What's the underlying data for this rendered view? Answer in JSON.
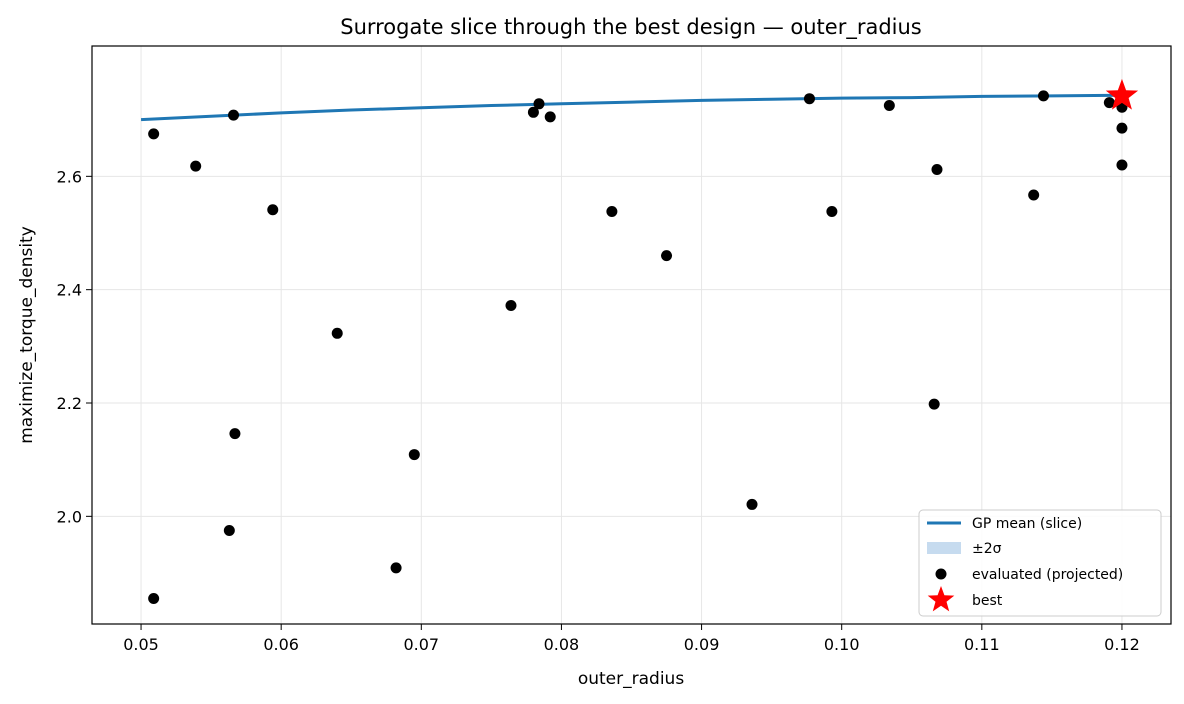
{
  "chart_data": {
    "type": "scatter",
    "title": "Surrogate slice through the best design — outer_radius",
    "xlabel": "outer_radius",
    "ylabel": "maximize_torque_density",
    "xlim": [
      0.0465,
      0.1235
    ],
    "ylim": [
      1.81,
      2.83
    ],
    "xticks": [
      0.05,
      0.06,
      0.07,
      0.08,
      0.09,
      0.1,
      0.11,
      0.12
    ],
    "xtick_labels": [
      "0.05",
      "0.06",
      "0.07",
      "0.08",
      "0.09",
      "0.10",
      "0.11",
      "0.12"
    ],
    "yticks": [
      2.0,
      2.2,
      2.4,
      2.6
    ],
    "ytick_labels": [
      "2.0",
      "2.2",
      "2.4",
      "2.6"
    ],
    "grid": true,
    "legend_position": "bottom-right",
    "colors": {
      "mean": "#1f77b4",
      "band": "#c6dbef",
      "points": "#000000",
      "best": "#ff0000"
    },
    "series": [
      {
        "name": "GP mean (slice)",
        "kind": "line",
        "x": [
          0.05,
          0.055,
          0.06,
          0.065,
          0.07,
          0.075,
          0.08,
          0.085,
          0.09,
          0.095,
          0.1,
          0.105,
          0.11,
          0.115,
          0.12
        ],
        "y": [
          2.7,
          2.706,
          2.712,
          2.717,
          2.721,
          2.725,
          2.728,
          2.731,
          2.734,
          2.736,
          2.738,
          2.739,
          2.741,
          2.742,
          2.743
        ]
      },
      {
        "name": "±2σ",
        "kind": "band"
      },
      {
        "name": "evaluated (projected)",
        "kind": "scatter",
        "points": [
          [
            0.0509,
            2.675
          ],
          [
            0.0539,
            2.618
          ],
          [
            0.0566,
            2.708
          ],
          [
            0.0594,
            2.541
          ],
          [
            0.0567,
            2.146
          ],
          [
            0.0563,
            1.975
          ],
          [
            0.0509,
            1.855
          ],
          [
            0.064,
            2.323
          ],
          [
            0.0682,
            1.909
          ],
          [
            0.0695,
            2.109
          ],
          [
            0.0764,
            2.372
          ],
          [
            0.078,
            2.713
          ],
          [
            0.0784,
            2.728
          ],
          [
            0.0792,
            2.705
          ],
          [
            0.0836,
            2.538
          ],
          [
            0.0875,
            2.46
          ],
          [
            0.0936,
            2.021
          ],
          [
            0.0977,
            2.737
          ],
          [
            0.0993,
            2.538
          ],
          [
            0.1034,
            2.725
          ],
          [
            0.1066,
            2.198
          ],
          [
            0.1068,
            2.612
          ],
          [
            0.1137,
            2.567
          ],
          [
            0.1144,
            2.742
          ],
          [
            0.1191,
            2.73
          ],
          [
            0.12,
            2.722
          ],
          [
            0.12,
            2.685
          ],
          [
            0.12,
            2.62
          ]
        ]
      },
      {
        "name": "best",
        "kind": "marker",
        "points": [
          [
            0.12,
            2.742
          ]
        ]
      }
    ]
  }
}
